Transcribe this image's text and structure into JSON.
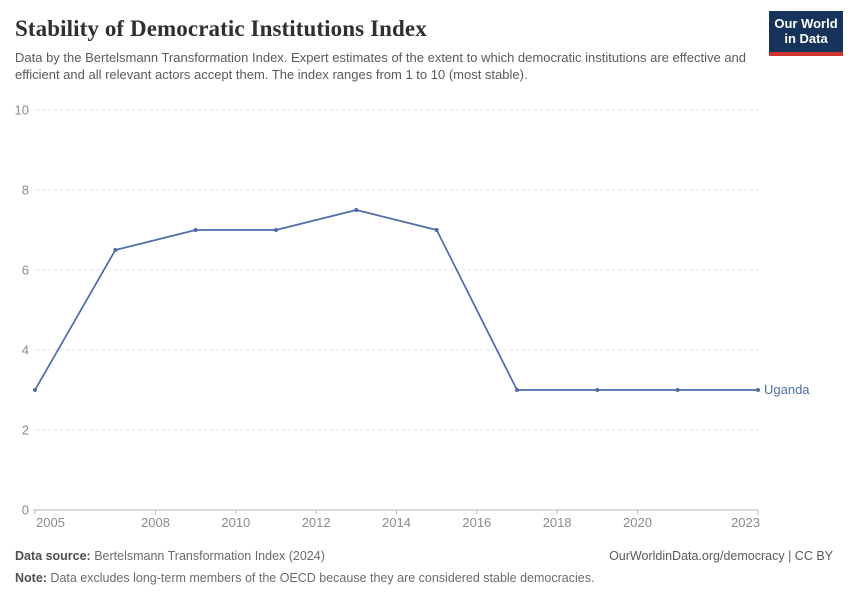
{
  "header": {
    "title": "Stability of Democratic Institutions Index",
    "subtitle": "Data by the Bertelsmann Transformation Index. Expert estimates of the extent to which democratic institutions are effective and efficient and all relevant actors accept them. The index ranges from 1 to 10 (most stable).",
    "logo": {
      "line1": "Our World",
      "line2": "in Data",
      "bg_color": "#16335b",
      "accent_color": "#cf352c"
    }
  },
  "chart_data": {
    "type": "line",
    "title": "Stability of Democratic Institutions Index",
    "x": [
      2005,
      2007,
      2009,
      2011,
      2013,
      2015,
      2017,
      2019,
      2021,
      2023
    ],
    "series": [
      {
        "name": "Uganda",
        "color": "#4b6caa",
        "values": [
          3,
          6.5,
          7,
          7,
          7.5,
          7,
          3,
          3,
          3,
          3
        ]
      }
    ],
    "xlim": [
      2005,
      2023
    ],
    "ylim": [
      0,
      10
    ],
    "y_ticks": [
      0,
      2,
      4,
      6,
      8,
      10
    ],
    "x_tick_labels": [
      2005,
      2008,
      2010,
      2012,
      2014,
      2016,
      2018,
      2020,
      2023
    ],
    "grid": "horizontal-dashed",
    "legend": "end-of-line-label",
    "xlabel": "",
    "ylabel": ""
  },
  "footer": {
    "source_label": "Data source:",
    "source_value": " Bertelsmann Transformation Index (2024)",
    "attribution": "OurWorldinData.org/democracy | CC BY",
    "note_label": "Note:",
    "note_value": " Data excludes long-term members of the OECD because they are considered stable democracies."
  }
}
